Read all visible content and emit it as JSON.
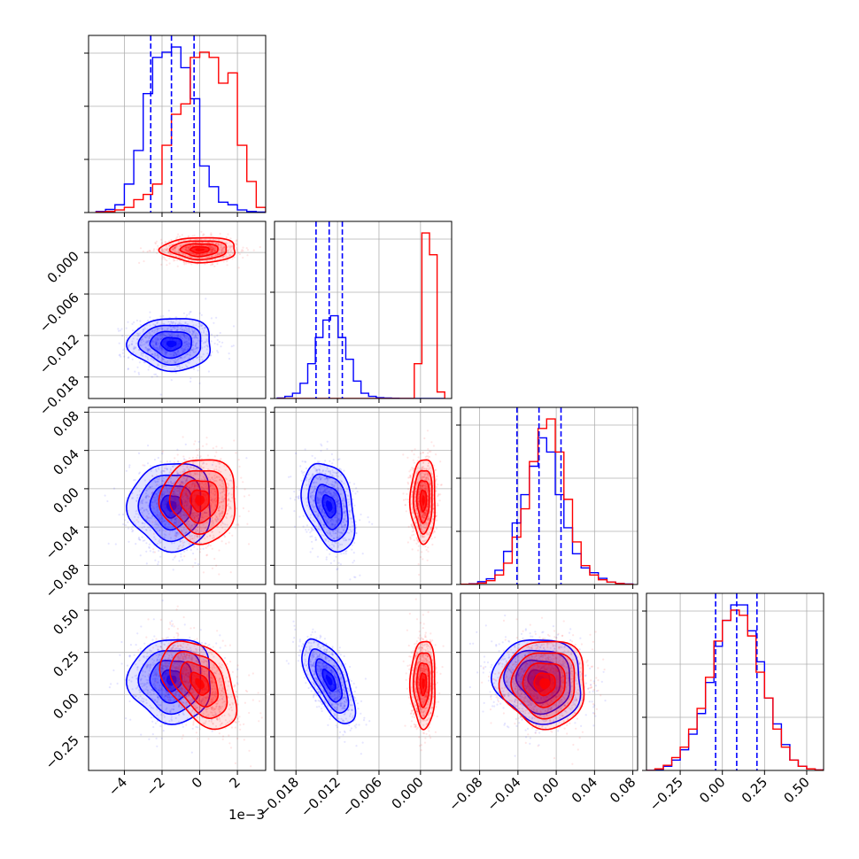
{
  "colors": {
    "series_a": "#0000ff",
    "series_b": "#ff0000",
    "grid": "#b0b0b0",
    "axes": "#000000"
  },
  "chart_data": {
    "type": "corner",
    "grid": true,
    "x_offset_label": "1e−3",
    "parameters": [
      {
        "index": 0,
        "scale": 0.001,
        "range": [
          -0.0059,
          0.0035
        ],
        "ticks": [
          -0.004,
          -0.002,
          0.0,
          0.002
        ],
        "tick_labels": [
          "−4",
          "−2",
          "0",
          "2"
        ]
      },
      {
        "index": 1,
        "range": [
          -0.0211,
          0.0045
        ],
        "ticks": [
          -0.018,
          -0.012,
          -0.006,
          0.0
        ],
        "tick_labels": [
          "−0.018",
          "−0.012",
          "−0.006",
          "0.000"
        ]
      },
      {
        "index": 2,
        "range": [
          -0.1,
          0.085
        ],
        "ticks": [
          -0.08,
          -0.04,
          0.0,
          0.04,
          0.08
        ],
        "tick_labels": [
          "−0.08",
          "−0.04",
          "0.00",
          "0.04",
          "0.08"
        ]
      },
      {
        "index": 3,
        "range": [
          -0.45,
          0.6
        ],
        "ticks": [
          -0.25,
          0.0,
          0.25,
          0.5
        ],
        "tick_labels": [
          "−0.25",
          "0.00",
          "0.25",
          "0.50"
        ]
      }
    ],
    "series": [
      {
        "color_key": "series_a",
        "mean": [
          -0.0015,
          -0.0132,
          -0.018,
          0.085
        ],
        "std": [
          0.0011,
          0.0019,
          0.023,
          0.125
        ],
        "correlations": [
          [
            1,
            0,
            0,
            0
          ],
          [
            0,
            1,
            -0.35,
            -0.65
          ],
          [
            0,
            -0.35,
            1,
            -0.1
          ],
          [
            0,
            -0.65,
            -0.1,
            1
          ]
        ],
        "quantiles": [
          [
            -0.0026,
            -0.0015,
            -0.0003
          ],
          [
            -0.0151,
            -0.0132,
            -0.0113
          ],
          [
            -0.041,
            -0.018,
            0.005
          ],
          [
            -0.04,
            0.085,
            0.205
          ]
        ]
      },
      {
        "color_key": "series_b",
        "mean": [
          0.0,
          0.0004,
          -0.012,
          0.065
        ],
        "std": [
          0.001,
          0.0009,
          0.022,
          0.13
        ],
        "correlations": [
          [
            1,
            0,
            0,
            -0.45
          ],
          [
            0,
            1,
            0,
            0
          ],
          [
            0,
            0,
            1,
            0
          ],
          [
            -0.45,
            0,
            0,
            1
          ]
        ],
        "quantiles": []
      }
    ],
    "histograms": [
      {
        "param": 0,
        "bins": [
          -0.0055,
          -0.005,
          -0.0045,
          -0.004,
          -0.0035,
          -0.003,
          -0.0025,
          -0.002,
          -0.0015,
          -0.001,
          -0.0005,
          0.0,
          0.0005,
          0.001,
          0.0015,
          0.002,
          0.0025,
          0.003,
          0.0035
        ],
        "series": [
          [
            0.2,
            0.6,
            1.5,
            5.5,
            12,
            23,
            30,
            31,
            32,
            28,
            22,
            9,
            5,
            2,
            1.5,
            0.5,
            0.2,
            0.1
          ],
          [
            0.1,
            0.2,
            0.5,
            1,
            2.5,
            3.5,
            5.5,
            13,
            19,
            21,
            30,
            31,
            30,
            25,
            27,
            13,
            6,
            1
          ]
        ]
      },
      {
        "param": 1,
        "bins": [
          -0.0207,
          -0.0196,
          -0.0185,
          -0.0174,
          -0.0163,
          -0.0152,
          -0.0141,
          -0.013,
          -0.0119,
          -0.0108,
          -0.0097,
          -0.0086,
          -0.0075,
          -0.0064,
          -0.0053,
          -0.0042,
          -0.0031,
          -0.002,
          -0.0009,
          0.0002,
          0.0013,
          0.0024,
          0.0035
        ],
        "series": [
          [
            0.1,
            0.5,
            1.2,
            3.5,
            8,
            14,
            18,
            19,
            14,
            9,
            4,
            1.2,
            0.5,
            0.2,
            0.1,
            0.05,
            0,
            0,
            0,
            0,
            0,
            0
          ],
          [
            0,
            0,
            0,
            0,
            0,
            0,
            0,
            0,
            0,
            0,
            0,
            0,
            0,
            0,
            0,
            0,
            0,
            0,
            8,
            38,
            33,
            1.5
          ]
        ]
      },
      {
        "param": 2,
        "bins": [
          -0.1,
          -0.091,
          -0.082,
          -0.073,
          -0.064,
          -0.055,
          -0.046,
          -0.037,
          -0.028,
          -0.019,
          -0.01,
          -0.001,
          0.008,
          0.017,
          0.026,
          0.035,
          0.044,
          0.053,
          0.062,
          0.071,
          0.08
        ],
        "series": [
          [
            0.05,
            0.15,
            0.6,
            1.2,
            3,
            7,
            13,
            19,
            25,
            31,
            28,
            19,
            12,
            6.5,
            3.5,
            2.5,
            1.3,
            0.5,
            0.2,
            0.1
          ],
          [
            0.05,
            0.1,
            0.3,
            0.8,
            2,
            4.5,
            10,
            16,
            26,
            33,
            35,
            28,
            18,
            9,
            4,
            2,
            1,
            0.5,
            0.2,
            0.05
          ]
        ]
      },
      {
        "param": 3,
        "bins": [
          -0.45,
          -0.4,
          -0.35,
          -0.3,
          -0.25,
          -0.2,
          -0.15,
          -0.1,
          -0.05,
          0.0,
          0.05,
          0.1,
          0.15,
          0.2,
          0.25,
          0.3,
          0.35,
          0.4,
          0.45,
          0.5,
          0.55,
          0.6
        ],
        "series": [
          [
            0,
            0.2,
            0.8,
            2,
            4,
            7,
            11,
            17,
            24,
            29,
            32,
            32,
            27,
            21,
            14,
            9,
            5,
            2,
            0.8,
            0.3,
            0.1
          ],
          [
            0,
            0.3,
            1,
            2.5,
            4.5,
            8,
            12,
            18,
            25,
            29,
            31,
            30,
            26,
            19,
            14,
            8,
            4.5,
            2,
            0.8,
            0.3,
            0.1
          ]
        ]
      }
    ]
  }
}
